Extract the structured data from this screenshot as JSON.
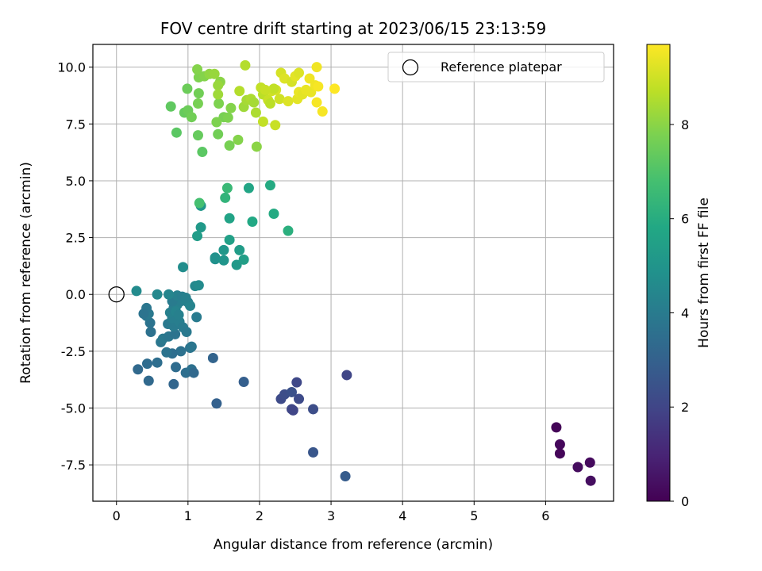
{
  "chart_data": {
    "type": "scatter",
    "title": "FOV centre drift starting at 2023/06/15 23:13:59",
    "xlabel": "Angular distance from reference (arcmin)",
    "ylabel": "Rotation from reference (arcmin)",
    "xlim": [
      -0.33,
      6.95
    ],
    "ylim": [
      -9.1,
      11.0
    ],
    "x_ticks": [
      0,
      1,
      2,
      3,
      4,
      5,
      6
    ],
    "y_ticks": [
      -7.5,
      -5.0,
      -2.5,
      0.0,
      2.5,
      5.0,
      7.5,
      10.0
    ],
    "grid": true,
    "legend": {
      "position": "top-right",
      "entries": [
        "Reference platepar"
      ]
    },
    "reference_point": {
      "x": 0,
      "y": 0
    },
    "colorbar": {
      "label": "Hours from first FF file",
      "min": 0,
      "max": 9.7,
      "ticks": [
        0,
        2,
        4,
        6,
        8
      ],
      "colormap": "viridis"
    },
    "points": [
      [
        6.15,
        -5.85,
        0.1
      ],
      [
        6.2,
        -6.6,
        0.2
      ],
      [
        6.2,
        -7.0,
        0.15
      ],
      [
        6.45,
        -7.6,
        0.3
      ],
      [
        6.62,
        -7.4,
        0.25
      ],
      [
        6.63,
        -8.2,
        0.35
      ],
      [
        3.22,
        -3.55,
        2.0
      ],
      [
        2.52,
        -3.87,
        2.1
      ],
      [
        2.3,
        -4.6,
        2.2
      ],
      [
        2.35,
        -4.4,
        2.3
      ],
      [
        2.45,
        -4.3,
        2.4
      ],
      [
        2.55,
        -4.6,
        2.2
      ],
      [
        2.45,
        -5.05,
        2.1
      ],
      [
        2.47,
        -5.1,
        2.0
      ],
      [
        2.75,
        -5.05,
        2.3
      ],
      [
        2.75,
        -6.95,
        2.6
      ],
      [
        3.2,
        -8.0,
        2.8
      ],
      [
        1.78,
        -3.85,
        2.9
      ],
      [
        1.4,
        -4.8,
        3.0
      ],
      [
        1.35,
        -2.8,
        3.1
      ],
      [
        0.3,
        -3.3,
        3.3
      ],
      [
        0.43,
        -3.05,
        3.4
      ],
      [
        0.45,
        -3.8,
        3.3
      ],
      [
        0.57,
        -3.0,
        3.5
      ],
      [
        0.8,
        -3.95,
        3.2
      ],
      [
        0.83,
        -3.2,
        3.4
      ],
      [
        0.97,
        -3.45,
        3.5
      ],
      [
        1.05,
        -3.3,
        3.6
      ],
      [
        1.08,
        -3.45,
        3.3
      ],
      [
        1.03,
        -2.35,
        3.7
      ],
      [
        1.05,
        -2.3,
        3.8
      ],
      [
        0.9,
        -2.5,
        3.6
      ],
      [
        0.78,
        -2.6,
        3.5
      ],
      [
        0.7,
        -2.55,
        3.7
      ],
      [
        0.62,
        -2.1,
        3.8
      ],
      [
        0.65,
        -1.95,
        3.9
      ],
      [
        0.73,
        -1.85,
        3.8
      ],
      [
        0.82,
        -1.75,
        3.7
      ],
      [
        0.48,
        -1.65,
        3.6
      ],
      [
        0.47,
        -1.25,
        3.7
      ],
      [
        0.42,
        -0.95,
        3.8
      ],
      [
        0.45,
        -0.85,
        3.9
      ],
      [
        0.42,
        -0.6,
        3.8
      ],
      [
        0.38,
        -0.85,
        3.7
      ],
      [
        0.72,
        -1.3,
        3.9
      ],
      [
        0.8,
        -1.4,
        4.0
      ],
      [
        0.88,
        -1.2,
        4.1
      ],
      [
        0.93,
        -1.45,
        4.0
      ],
      [
        0.98,
        -1.65,
        3.9
      ],
      [
        1.12,
        -1.0,
        4.0
      ],
      [
        0.78,
        -1.05,
        4.1
      ],
      [
        0.75,
        -0.8,
        4.2
      ],
      [
        0.8,
        -0.6,
        4.1
      ],
      [
        0.85,
        -0.45,
        4.2
      ],
      [
        0.9,
        -0.3,
        4.1
      ],
      [
        0.95,
        -0.2,
        4.3
      ],
      [
        1.0,
        -0.35,
        4.2
      ],
      [
        1.03,
        -0.5,
        4.3
      ],
      [
        0.78,
        -0.3,
        4.0
      ],
      [
        0.85,
        -0.05,
        4.2
      ],
      [
        0.92,
        -0.1,
        4.1
      ],
      [
        0.97,
        -0.15,
        4.2
      ],
      [
        0.83,
        -0.75,
        4.3
      ],
      [
        0.87,
        -0.9,
        4.2
      ],
      [
        0.57,
        0.0,
        4.5
      ],
      [
        0.73,
        0.0,
        4.4
      ],
      [
        0.28,
        0.15,
        4.6
      ],
      [
        1.1,
        0.37,
        4.5
      ],
      [
        1.15,
        0.4,
        4.6
      ],
      [
        0.93,
        1.2,
        4.7
      ],
      [
        1.38,
        1.55,
        4.8
      ],
      [
        1.38,
        1.62,
        4.9
      ],
      [
        1.5,
        1.5,
        5.0
      ],
      [
        1.5,
        1.95,
        5.1
      ],
      [
        1.68,
        1.3,
        5.2
      ],
      [
        1.72,
        1.95,
        5.3
      ],
      [
        1.78,
        1.53,
        5.4
      ],
      [
        1.18,
        2.95,
        5.2
      ],
      [
        1.13,
        2.57,
        5.3
      ],
      [
        1.58,
        2.4,
        5.5
      ],
      [
        1.18,
        3.9,
        5.1
      ],
      [
        1.58,
        3.35,
        5.6
      ],
      [
        1.9,
        3.2,
        5.8
      ],
      [
        2.2,
        3.55,
        5.9
      ],
      [
        2.4,
        2.8,
        6.1
      ],
      [
        1.85,
        4.68,
        5.7
      ],
      [
        2.15,
        4.8,
        5.9
      ],
      [
        1.52,
        4.25,
        6.3
      ],
      [
        1.55,
        4.68,
        6.5
      ],
      [
        1.16,
        4.02,
        6.8
      ],
      [
        1.2,
        6.27,
        7.2
      ],
      [
        0.76,
        8.27,
        7.3
      ],
      [
        0.84,
        7.12,
        7.2
      ],
      [
        0.95,
        8.0,
        7.4
      ],
      [
        1.0,
        8.1,
        7.5
      ],
      [
        1.05,
        7.8,
        7.6
      ],
      [
        1.14,
        7.0,
        7.4
      ],
      [
        1.5,
        7.8,
        7.7
      ],
      [
        1.56,
        7.78,
        7.8
      ],
      [
        1.42,
        7.05,
        7.6
      ],
      [
        1.4,
        7.58,
        7.8
      ],
      [
        1.58,
        6.55,
        7.7
      ],
      [
        1.7,
        6.8,
        7.9
      ],
      [
        1.96,
        6.5,
        8.0
      ],
      [
        1.6,
        8.2,
        7.9
      ],
      [
        1.43,
        8.4,
        7.8
      ],
      [
        1.14,
        8.4,
        7.7
      ],
      [
        1.15,
        8.85,
        7.6
      ],
      [
        0.99,
        9.05,
        7.5
      ],
      [
        1.15,
        9.55,
        7.8
      ],
      [
        1.23,
        9.6,
        7.9
      ],
      [
        1.3,
        9.7,
        8.1
      ],
      [
        1.37,
        9.7,
        8.2
      ],
      [
        1.45,
        9.35,
        8.0
      ],
      [
        1.42,
        9.2,
        8.2
      ],
      [
        1.13,
        9.9,
        7.9
      ],
      [
        1.42,
        8.8,
        8.3
      ],
      [
        1.78,
        8.25,
        8.3
      ],
      [
        1.82,
        8.55,
        8.4
      ],
      [
        1.88,
        8.6,
        8.5
      ],
      [
        1.92,
        8.45,
        8.4
      ],
      [
        1.95,
        8.0,
        8.5
      ],
      [
        1.72,
        8.95,
        8.6
      ],
      [
        1.8,
        10.08,
        8.6
      ],
      [
        2.02,
        9.1,
        8.8
      ],
      [
        2.05,
        8.8,
        8.7
      ],
      [
        2.12,
        8.55,
        8.9
      ],
      [
        2.15,
        8.4,
        8.7
      ],
      [
        2.22,
        7.45,
        8.9
      ],
      [
        2.05,
        7.6,
        8.8
      ],
      [
        2.17,
        8.95,
        9.0
      ],
      [
        2.23,
        9.0,
        9.1
      ],
      [
        2.28,
        8.6,
        9.0
      ],
      [
        2.3,
        9.75,
        9.1
      ],
      [
        2.35,
        9.5,
        9.2
      ],
      [
        2.4,
        8.5,
        9.2
      ],
      [
        2.45,
        9.35,
        9.1
      ],
      [
        2.5,
        9.6,
        9.3
      ],
      [
        2.55,
        9.75,
        9.2
      ],
      [
        2.53,
        8.6,
        9.3
      ],
      [
        2.55,
        8.9,
        9.4
      ],
      [
        2.6,
        8.8,
        9.3
      ],
      [
        2.65,
        9.0,
        9.4
      ],
      [
        2.7,
        9.5,
        9.5
      ],
      [
        2.72,
        8.9,
        9.4
      ],
      [
        2.78,
        9.2,
        9.5
      ],
      [
        2.8,
        10.0,
        9.5
      ],
      [
        2.82,
        9.15,
        9.6
      ],
      [
        2.8,
        8.45,
        9.6
      ],
      [
        2.88,
        8.05,
        9.6
      ],
      [
        3.05,
        9.05,
        9.7
      ],
      [
        2.2,
        9.05,
        8.8
      ],
      [
        2.08,
        9.0,
        8.9
      ]
    ]
  }
}
